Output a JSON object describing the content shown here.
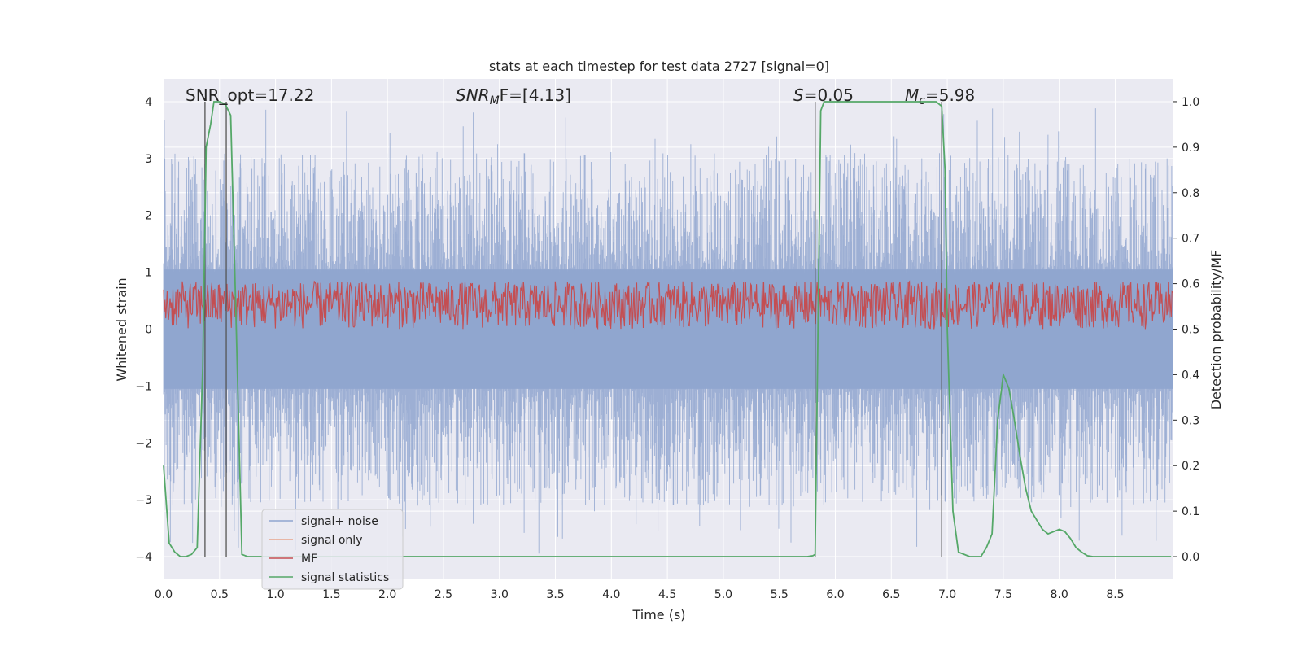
{
  "chart_data": {
    "type": "line",
    "title": "stats at each timestep for test data 2727 [signal=0]",
    "xlabel": "Time (s)",
    "ylabel_left": "Whitened strain",
    "ylabel_right": "Detection probability/MF",
    "xlim": [
      0.0,
      9.02
    ],
    "ylim_left": [
      -4.4,
      4.4
    ],
    "ylim_right": [
      -0.05,
      1.05
    ],
    "xticks": [
      "0.0",
      "0.5",
      "1.0",
      "1.5",
      "2.0",
      "2.5",
      "3.0",
      "3.5",
      "4.0",
      "4.5",
      "5.0",
      "5.5",
      "6.0",
      "6.5",
      "7.0",
      "7.5",
      "8.0",
      "8.5"
    ],
    "yticks_left": [
      "4",
      "3",
      "2",
      "1",
      "0",
      "−1",
      "−2",
      "−3",
      "−4"
    ],
    "yticks_right": [
      "1.0",
      "0.9",
      "0.8",
      "0.7",
      "0.6",
      "0.5",
      "0.4",
      "0.3",
      "0.2",
      "0.1",
      "0.0"
    ],
    "annotations": {
      "snr_opt": "SNR_opt=17.22",
      "snr_mf_main": "SNR",
      "snr_mf_sub": "M",
      "snr_mf_rest": "F=[4.13]",
      "s_main": "S",
      "s_rest": "=0.05",
      "mc_main": "M",
      "mc_sub": "c",
      "mc_rest": "=5.98"
    },
    "vertical_markers": [
      0.37,
      0.56,
      5.82,
      6.95
    ],
    "legend": [
      {
        "label": "signal+ noise",
        "color": "#8fa5cf"
      },
      {
        "label": "signal only",
        "color": "#e8a58c"
      },
      {
        "label": "MF",
        "color": "#c44e52"
      },
      {
        "label": "signal statistics",
        "color": "#55a868"
      }
    ],
    "series": [
      {
        "name": "signal+ noise",
        "axis": "left",
        "color": "#8fa5cf",
        "kind": "noise",
        "envelope": [
          -2.6,
          2.6
        ],
        "max_peak": 3.9,
        "min_peak": -3.95
      },
      {
        "name": "MF",
        "axis": "right",
        "color": "#c44e52",
        "kind": "band",
        "range": [
          0.5,
          0.6
        ]
      },
      {
        "name": "signal statistics",
        "axis": "right",
        "color": "#55a868",
        "x": [
          0.0,
          0.05,
          0.1,
          0.15,
          0.2,
          0.25,
          0.3,
          0.35,
          0.38,
          0.42,
          0.45,
          0.5,
          0.55,
          0.6,
          0.65,
          0.7,
          0.75,
          0.8,
          1.0,
          2.0,
          3.0,
          4.0,
          5.0,
          5.5,
          5.75,
          5.8,
          5.82,
          5.87,
          5.9,
          6.0,
          6.5,
          6.9,
          6.95,
          6.98,
          7.0,
          7.05,
          7.1,
          7.2,
          7.3,
          7.35,
          7.4,
          7.45,
          7.5,
          7.55,
          7.6,
          7.65,
          7.7,
          7.75,
          7.8,
          7.85,
          7.9,
          7.95,
          8.0,
          8.05,
          8.1,
          8.15,
          8.2,
          8.25,
          8.3,
          8.4,
          8.6,
          8.8,
          9.0
        ],
        "y": [
          0.2,
          0.03,
          0.01,
          0.0,
          0.0,
          0.005,
          0.02,
          0.42,
          0.9,
          0.95,
          1.0,
          1.0,
          0.995,
          0.97,
          0.5,
          0.005,
          0.0,
          0.0,
          0.0,
          0.0,
          0.0,
          0.0,
          0.0,
          0.0,
          0.0,
          0.002,
          0.005,
          0.98,
          1.0,
          1.0,
          1.0,
          1.0,
          0.99,
          0.85,
          0.5,
          0.1,
          0.01,
          0.0,
          0.0,
          0.02,
          0.05,
          0.3,
          0.4,
          0.37,
          0.3,
          0.22,
          0.15,
          0.1,
          0.08,
          0.06,
          0.05,
          0.055,
          0.06,
          0.055,
          0.04,
          0.02,
          0.01,
          0.002,
          0.0,
          0.0,
          0.0,
          0.0,
          0.0
        ]
      }
    ]
  }
}
